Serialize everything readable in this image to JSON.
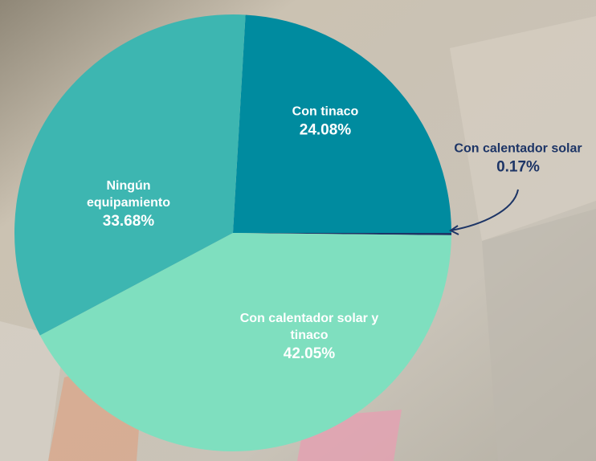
{
  "chart_data": {
    "type": "pie",
    "categories": [
      "Con tinaco",
      "Con calentador solar",
      "Con calentador solar y tinaco",
      "Ningún equipamiento"
    ],
    "values": [
      24.08,
      0.17,
      42.05,
      33.68
    ],
    "value_labels": [
      "24.08%",
      "0.17%",
      "42.05%",
      "33.68%"
    ],
    "colors": [
      "#008b9f",
      "#1d3566",
      "#7fdfbf",
      "#3db6b1"
    ]
  }
}
